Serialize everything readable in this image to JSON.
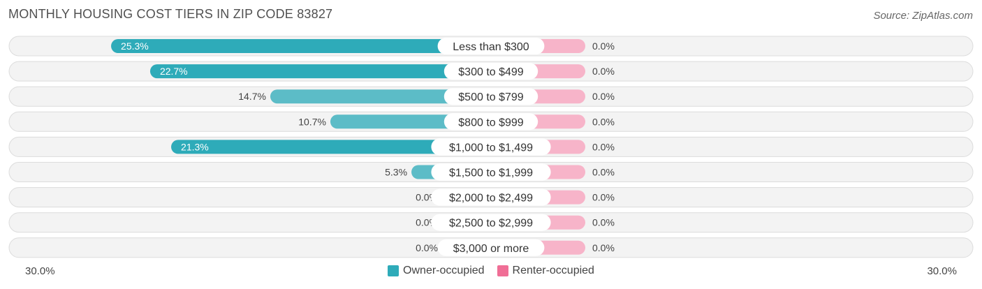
{
  "title": "MONTHLY HOUSING COST TIERS IN ZIP CODE 83827",
  "source": "Source: ZipAtlas.com",
  "axis": {
    "left_label": "30.0%",
    "right_label": "30.0%"
  },
  "legend": {
    "owner_label": "Owner-occupied",
    "renter_label": "Renter-occupied",
    "owner_color": "#2eabb9",
    "renter_color": "#f06e96"
  },
  "chart_data": {
    "type": "bar",
    "orientation": "horizontal-diverging",
    "title": "MONTHLY HOUSING COST TIERS IN ZIP CODE 83827",
    "xlim": [
      -30,
      30
    ],
    "categories": [
      "Less than $300",
      "$300 to $499",
      "$500 to $799",
      "$800 to $999",
      "$1,000 to $1,499",
      "$1,500 to $1,999",
      "$2,000 to $2,499",
      "$2,500 to $2,999",
      "$3,000 or more"
    ],
    "series": [
      {
        "name": "Owner-occupied",
        "values": [
          25.3,
          22.7,
          14.7,
          10.7,
          21.3,
          5.3,
          0.0,
          0.0,
          0.0
        ],
        "labels": [
          "25.3%",
          "22.7%",
          "14.7%",
          "10.7%",
          "21.3%",
          "5.3%",
          "0.0%",
          "0.0%",
          "0.0%"
        ]
      },
      {
        "name": "Renter-occupied",
        "values": [
          0.0,
          0.0,
          0.0,
          0.0,
          0.0,
          0.0,
          0.0,
          0.0,
          0.0
        ],
        "labels": [
          "0.0%",
          "0.0%",
          "0.0%",
          "0.0%",
          "0.0%",
          "0.0%",
          "0.0%",
          "0.0%",
          "0.0%"
        ]
      }
    ]
  }
}
